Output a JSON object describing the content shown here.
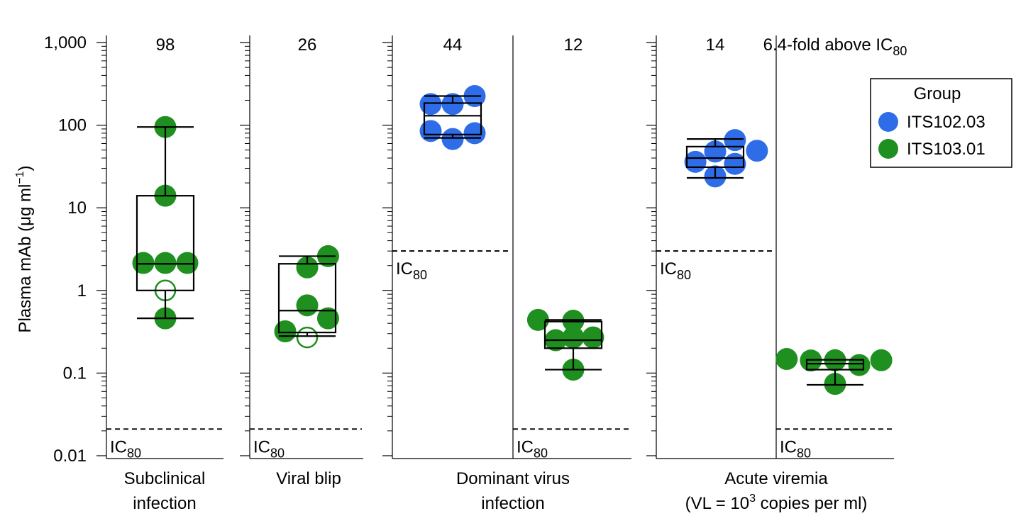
{
  "chart_data": {
    "type": "box-dot",
    "ylabel": "Plasma mAb (μg ml",
    "ylabel_sup": "−1",
    "ylabel_close": ")",
    "yscale": "log",
    "ylim": [
      0.01,
      1000
    ],
    "yticks": [
      {
        "value": 0.01,
        "label": "0.01"
      },
      {
        "value": 0.1,
        "label": "0.1"
      },
      {
        "value": 1,
        "label": "1"
      },
      {
        "value": 10,
        "label": "10"
      },
      {
        "value": 100,
        "label": "100"
      },
      {
        "value": 1000,
        "label": "1,000"
      }
    ],
    "legend": {
      "title": "Group",
      "position": "right",
      "items": [
        {
          "label": "ITS102.03",
          "color": "#2f6de8"
        },
        {
          "label": "ITS103.01",
          "color": "#1f8f1f"
        }
      ]
    },
    "ic_label": {
      "main": "IC",
      "sub": "80"
    },
    "groups": [
      {
        "label_lines": [
          "Subclinical",
          "infection"
        ],
        "subpanels": [
          {
            "top_label": "98",
            "color": "#1f8f1f",
            "ic80": 0.021,
            "box": {
              "whisker_low": 0.46,
              "q1": 1.0,
              "median": 2.1,
              "q3": 14,
              "whisker_high": 95
            },
            "points": [
              {
                "x": 0,
                "y": 95,
                "open": false
              },
              {
                "x": 0,
                "y": 14,
                "open": false
              },
              {
                "x": -1,
                "y": 2.15,
                "open": false
              },
              {
                "x": 0,
                "y": 2.15,
                "open": false
              },
              {
                "x": 1,
                "y": 2.15,
                "open": false
              },
              {
                "x": 0,
                "y": 1.0,
                "open": true
              },
              {
                "x": 0,
                "y": 0.46,
                "open": false
              }
            ]
          }
        ]
      },
      {
        "label_lines": [
          "Viral blip"
        ],
        "subpanels": [
          {
            "top_label": "26",
            "color": "#1f8f1f",
            "ic80": 0.021,
            "box": {
              "whisker_low": 0.28,
              "q1": 0.31,
              "median": 0.57,
              "q3": 2.1,
              "whisker_high": 2.6
            },
            "points": [
              {
                "x": 0.95,
                "y": 2.6,
                "open": false
              },
              {
                "x": 0,
                "y": 1.9,
                "open": false
              },
              {
                "x": 0,
                "y": 0.66,
                "open": false
              },
              {
                "x": 0.95,
                "y": 0.46,
                "open": false
              },
              {
                "x": -1,
                "y": 0.32,
                "open": false
              },
              {
                "x": 0,
                "y": 0.27,
                "open": true
              }
            ]
          }
        ]
      },
      {
        "label_lines": [
          "Dominant virus",
          "infection"
        ],
        "subpanels": [
          {
            "top_label": "44",
            "color": "#2f6de8",
            "ic80": 3.0,
            "box": {
              "whisker_low": 70,
              "q1": 77,
              "median": 130,
              "q3": 185,
              "whisker_high": 225
            },
            "points": [
              {
                "x": -1,
                "y": 180,
                "open": false
              },
              {
                "x": 0,
                "y": 180,
                "open": false
              },
              {
                "x": 1,
                "y": 225,
                "open": false
              },
              {
                "x": -1,
                "y": 85,
                "open": false
              },
              {
                "x": 1,
                "y": 80,
                "open": false
              },
              {
                "x": 0,
                "y": 68,
                "open": false
              }
            ]
          },
          {
            "top_label": "12",
            "color": "#1f8f1f",
            "ic80": 0.021,
            "box": {
              "whisker_low": 0.11,
              "q1": 0.2,
              "median": 0.25,
              "q3": 0.42,
              "whisker_high": 0.44
            },
            "points": [
              {
                "x": -1.6,
                "y": 0.44,
                "open": false
              },
              {
                "x": 0,
                "y": 0.43,
                "open": false
              },
              {
                "x": -0.8,
                "y": 0.25,
                "open": false
              },
              {
                "x": 0,
                "y": 0.27,
                "open": false
              },
              {
                "x": 0.9,
                "y": 0.27,
                "open": false
              },
              {
                "x": 0,
                "y": 0.11,
                "open": false
              }
            ]
          }
        ]
      },
      {
        "label_lines": [
          "Acute viremia",
          "(VL = 10",
          "3",
          " copies per ml)"
        ],
        "subpanels": [
          {
            "top_label": "14",
            "color": "#2f6de8",
            "ic80": 3.0,
            "box": {
              "whisker_low": 23,
              "q1": 31,
              "median": 40,
              "q3": 55,
              "whisker_high": 68
            },
            "points": [
              {
                "x": 0.9,
                "y": 66,
                "open": false
              },
              {
                "x": 0,
                "y": 48,
                "open": false
              },
              {
                "x": 1.9,
                "y": 49,
                "open": false
              },
              {
                "x": -0.9,
                "y": 36,
                "open": false
              },
              {
                "x": 0.9,
                "y": 34,
                "open": false
              },
              {
                "x": 0,
                "y": 24,
                "open": false
              }
            ]
          },
          {
            "top_label": "6.4-fold above IC",
            "top_label_sub": "80",
            "color": "#1f8f1f",
            "ic80": 0.021,
            "box": {
              "whisker_low": 0.072,
              "q1": 0.11,
              "median": 0.13,
              "q3": 0.145,
              "whisker_high": 0.145
            },
            "points": [
              {
                "x": -2.2,
                "y": 0.148,
                "open": false
              },
              {
                "x": -1.1,
                "y": 0.142,
                "open": false
              },
              {
                "x": 0,
                "y": 0.143,
                "open": false
              },
              {
                "x": 1.1,
                "y": 0.125,
                "open": false
              },
              {
                "x": 2.1,
                "y": 0.143,
                "open": false
              },
              {
                "x": 0,
                "y": 0.074,
                "open": false
              }
            ]
          }
        ]
      }
    ]
  }
}
